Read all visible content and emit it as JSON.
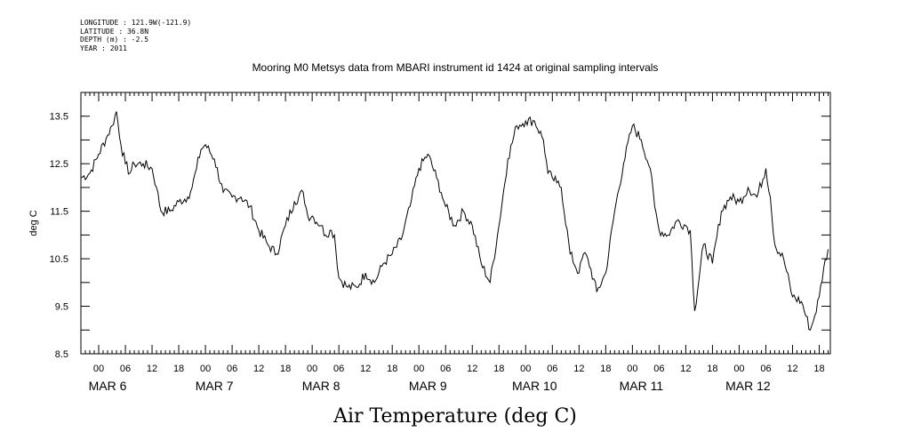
{
  "header": {
    "longitude": "LONGITUDE : 121.9W(-121.9)",
    "latitude": "LATITUDE : 36.8N",
    "depth": "DEPTH (m) : -2.5",
    "year": "YEAR : 2011"
  },
  "chart_data": {
    "type": "line",
    "title": "Mooring M0 Metsys data from MBARI instrument id 1424 at original sampling intervals",
    "xlabel": "Air Temperature (deg C)",
    "ylabel": "deg C",
    "ylim": [
      8.5,
      14.0
    ],
    "xlim_hours": [
      -4.0,
      164.5
    ],
    "y_ticks": [
      "8.5",
      "9.5",
      "10.5",
      "11.5",
      "12.5",
      "13.5"
    ],
    "x_hour_ticks": [
      "00",
      "06",
      "12",
      "18",
      "00",
      "06",
      "12",
      "18",
      "00",
      "06",
      "12",
      "18",
      "00",
      "06",
      "12",
      "18",
      "00",
      "06",
      "12",
      "18",
      "00",
      "06",
      "12",
      "18",
      "00",
      "06",
      "12",
      "18"
    ],
    "x_day_labels": [
      "MAR  6",
      "MAR  7",
      "MAR  8",
      "MAR  9",
      "MAR 10",
      "MAR 11",
      "MAR 12"
    ],
    "series": [
      {
        "x_units": "hours since 00 MAR 6",
        "x": [
          -4,
          -2,
          0,
          2,
          3,
          4,
          5,
          6,
          7,
          8,
          10,
          12,
          13,
          14,
          16,
          18,
          20,
          21,
          22,
          23,
          24,
          26,
          28,
          30,
          32,
          34,
          36,
          38,
          40,
          42,
          44,
          46,
          47,
          48,
          50,
          51,
          52,
          53,
          54,
          56,
          58,
          60,
          62,
          64,
          66,
          68,
          70,
          72,
          74,
          76,
          77,
          78,
          80,
          82,
          84,
          86,
          88,
          90,
          92,
          94,
          96,
          98,
          100,
          101,
          102,
          103,
          104,
          106,
          108,
          109,
          110,
          112,
          114,
          116,
          118,
          120,
          122,
          124,
          125,
          126,
          128,
          130,
          132,
          133,
          134,
          136,
          138,
          140,
          142,
          144,
          145,
          146,
          148,
          150,
          151,
          152,
          154,
          156,
          158,
          160,
          161,
          162,
          163,
          164
        ],
        "y": [
          12.2,
          12.3,
          12.7,
          13.1,
          13.3,
          13.6,
          12.9,
          12.5,
          12.3,
          12.5,
          12.5,
          12.4,
          12.0,
          11.5,
          11.5,
          11.7,
          11.8,
          12.0,
          12.4,
          12.8,
          12.9,
          12.6,
          11.9,
          11.8,
          11.8,
          11.6,
          11.1,
          10.8,
          10.6,
          11.2,
          11.7,
          11.9,
          11.4,
          11.4,
          11.2,
          11.0,
          11.1,
          11.0,
          10.1,
          9.9,
          9.9,
          10.2,
          10.0,
          10.4,
          10.6,
          10.9,
          11.6,
          12.4,
          12.7,
          12.2,
          11.9,
          11.6,
          11.2,
          11.5,
          11.2,
          10.4,
          10.0,
          11.2,
          12.6,
          13.3,
          13.4,
          13.4,
          13.0,
          12.3,
          12.2,
          12.1,
          12.0,
          10.6,
          10.2,
          10.6,
          10.5,
          9.8,
          10.2,
          11.5,
          12.5,
          13.3,
          13.0,
          12.4,
          11.6,
          11.1,
          11.0,
          11.3,
          11.2,
          11.1,
          9.4,
          10.8,
          10.4,
          11.5,
          11.8,
          11.7,
          11.8,
          12.0,
          11.8,
          12.4,
          11.8,
          10.8,
          10.5,
          9.7,
          9.6,
          9.0,
          9.3,
          9.7,
          10.3,
          10.7
        ]
      }
    ]
  }
}
